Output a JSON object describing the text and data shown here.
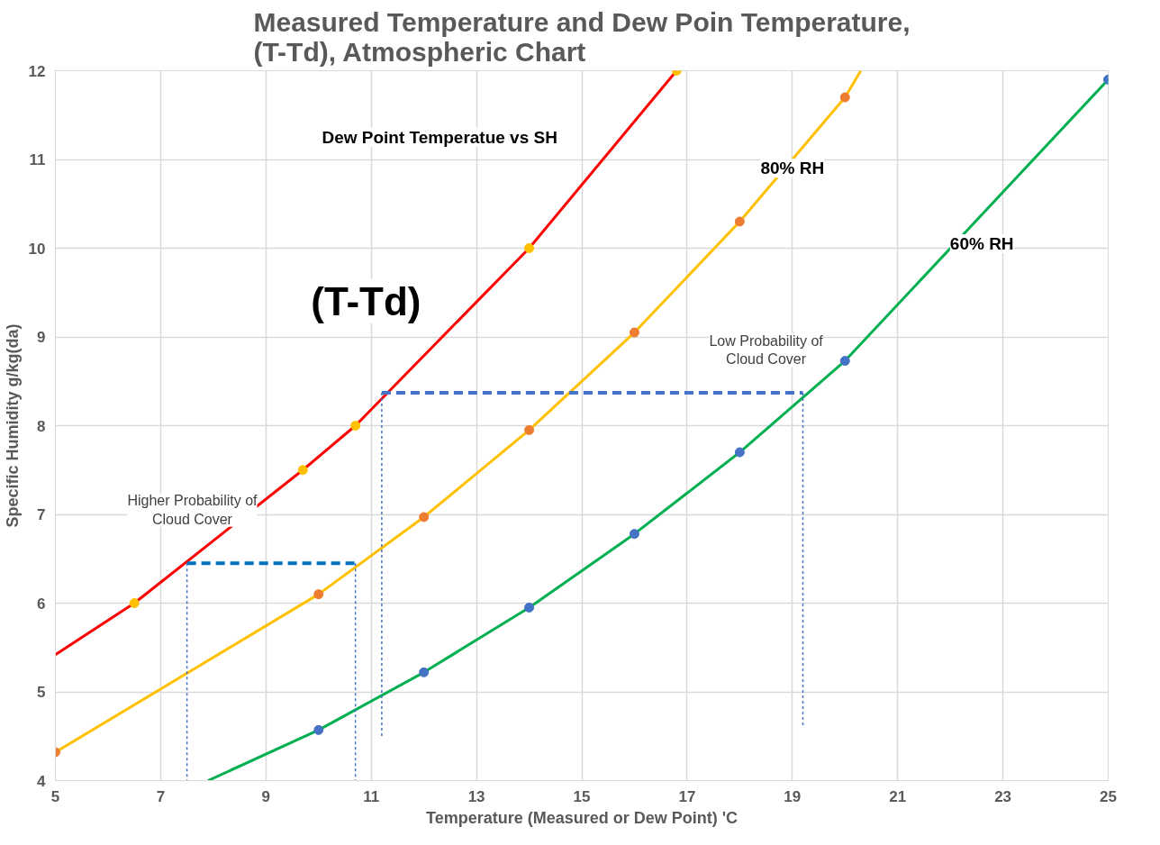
{
  "chart_data": {
    "type": "line",
    "title": "Measured Temperature and Dew Poin Temperature,\n(T-Td), Atmospheric Chart",
    "xlabel": "Temperature (Measured or Dew Point) 'C",
    "ylabel": "Specific Humidity g/kg(da)",
    "xlim": [
      5,
      25
    ],
    "xticks": [
      5,
      7,
      9,
      11,
      13,
      15,
      17,
      19,
      21,
      23,
      25
    ],
    "ylim": [
      4,
      12
    ],
    "yticks": [
      4,
      5,
      6,
      7,
      8,
      9,
      10,
      11,
      12
    ],
    "grid": true,
    "marker": "circle",
    "line_style": "solid",
    "series": [
      {
        "color": "#ff0000",
        "colors": [
          null,
          "#ffc000",
          "#ffc000",
          "#ffc000",
          "#ffc000",
          "#ffc000"
        ],
        "x": [
          5,
          6.5,
          9.7,
          10.7,
          14,
          16.8
        ],
        "values": [
          5.42,
          6.0,
          7.5,
          8.0,
          10.0,
          12.0
        ]
      },
      {
        "color": "#ffc000",
        "colors": [
          "#ed7d31",
          "#ed7d31",
          "#ed7d31",
          "#ed7d31",
          "#ed7d31",
          "#ed7d31",
          "#ed7d31",
          null
        ],
        "x": [
          5,
          10,
          12,
          14,
          16,
          18,
          20,
          20.3
        ],
        "values": [
          4.32,
          6.1,
          6.97,
          7.95,
          9.05,
          10.3,
          11.7,
          12.0
        ]
      },
      {
        "color": "#00b050",
        "colors": [
          null,
          "#4472c4",
          "#4472c4",
          "#4472c4",
          "#4472c4",
          "#4472c4",
          "#4472c4",
          "#4472c4"
        ],
        "x": [
          7.9,
          10,
          12,
          14,
          16,
          18,
          20,
          25
        ],
        "values": [
          4.0,
          4.57,
          5.22,
          5.95,
          6.78,
          7.7,
          8.73,
          11.9
        ]
      },
      {
        "color": "#0070c0",
        "line_style": "dashed",
        "marker": "none",
        "x": [
          7.5,
          10.7
        ],
        "values": [
          6.45,
          6.45
        ]
      },
      {
        "color": "#4472c4",
        "line_style": "dashed",
        "marker": "none",
        "x": [
          11.2,
          19.2
        ],
        "values": [
          8.37,
          8.37
        ]
      },
      {
        "color": "#4472c4",
        "line_style": "dotted",
        "marker": "none",
        "x": [
          7.5,
          7.5
        ],
        "values": [
          6.45,
          4.0
        ]
      },
      {
        "color": "#4472c4",
        "line_style": "dotted",
        "marker": "none",
        "x": [
          10.7,
          10.7
        ],
        "values": [
          6.45,
          4.0
        ]
      },
      {
        "color": "#4472c4",
        "line_style": "dotted",
        "marker": "none",
        "x": [
          11.2,
          11.2
        ],
        "values": [
          8.37,
          4.5
        ]
      },
      {
        "color": "#4472c4",
        "line_style": "dotted",
        "marker": "none",
        "x": [
          19.2,
          19.2
        ],
        "values": [
          8.37,
          4.6
        ]
      }
    ],
    "annotations": [
      "Dew Point Temperatue vs SH",
      "80% RH",
      "60% RH",
      "(T-Td)",
      "Low Probability of\nCloud Cover",
      "Higher Probability of\nCloud Cover"
    ]
  }
}
